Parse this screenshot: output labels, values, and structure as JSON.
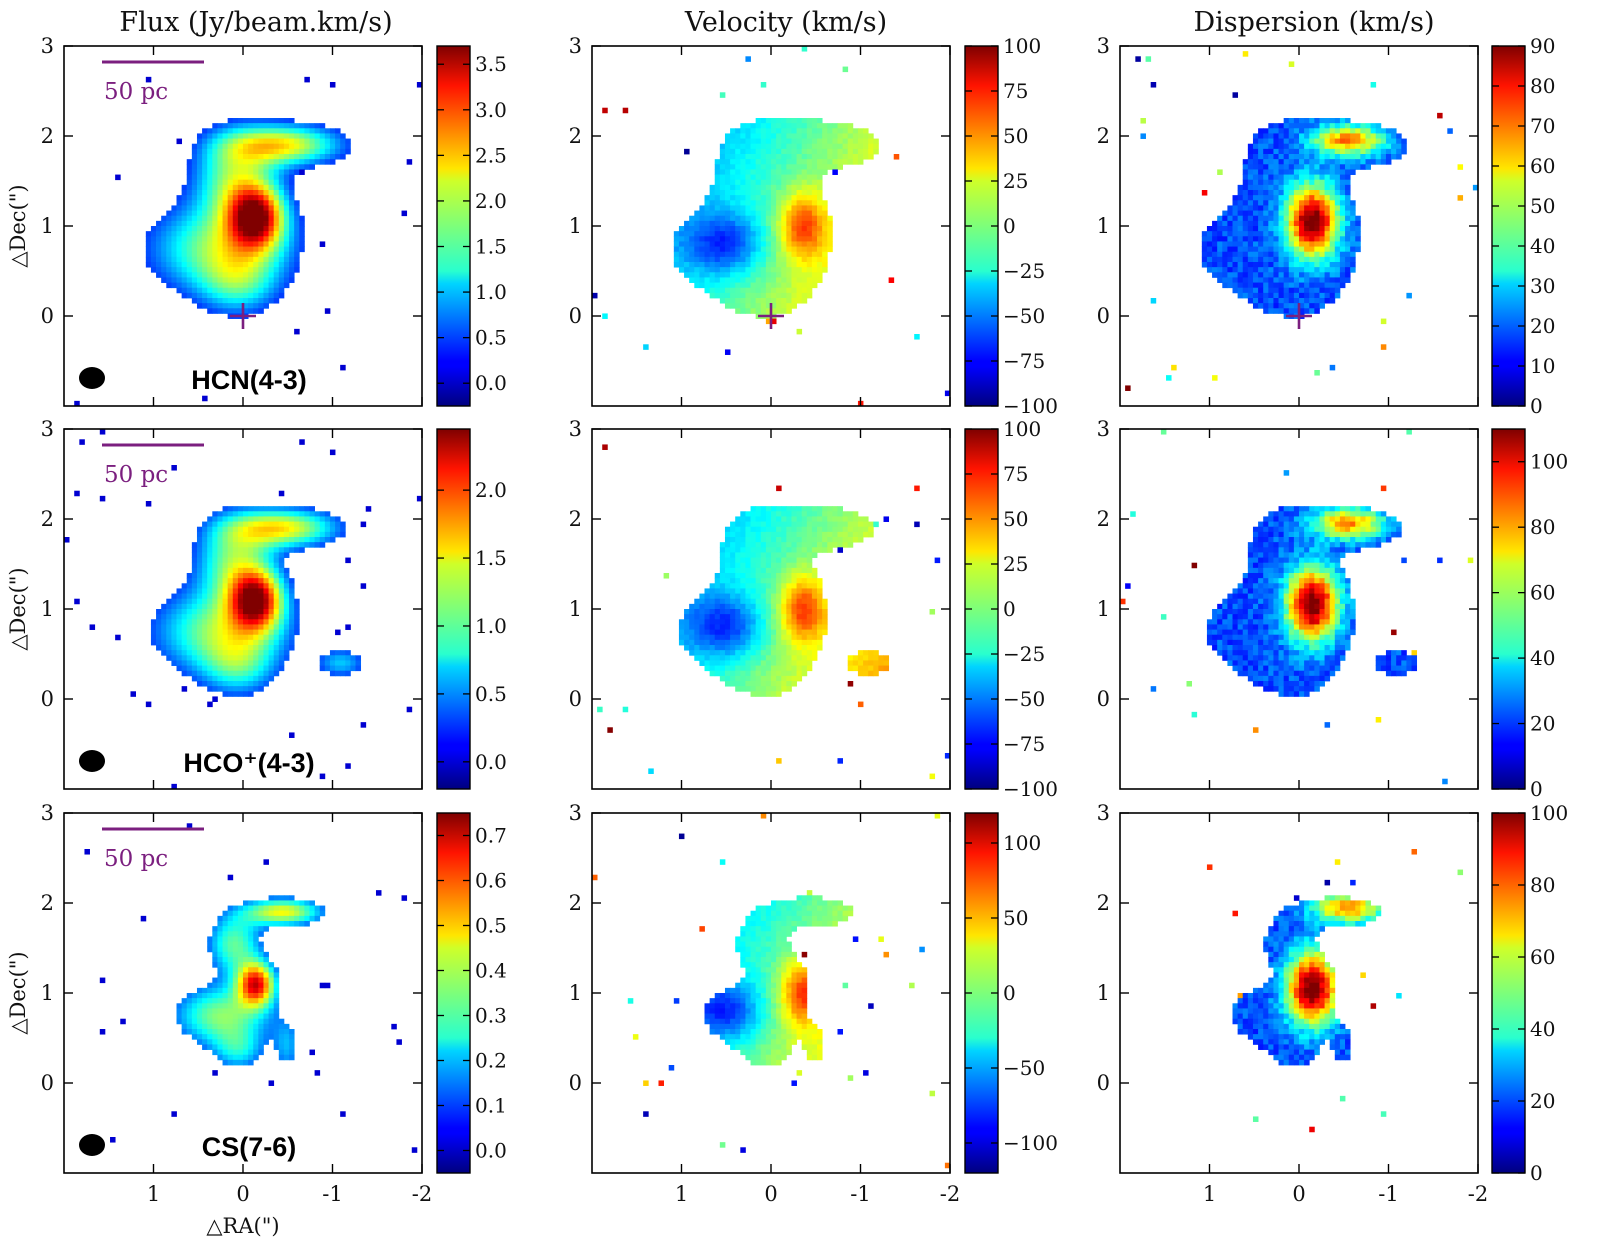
{
  "column_titles": {
    "flux": "Flux (Jy/beam.km/s)",
    "velocity": "Velocity (km/s)",
    "dispersion": "Dispersion (km/s)"
  },
  "axis_labels": {
    "ylabel": "△Dec(\")",
    "xlabel": "△RA(\")"
  },
  "scale_bar_label": "50 pc",
  "colors": {
    "scale_bar": "#7b1f7f",
    "nucleus_marker": "#7b1f7f",
    "beam": "#000000"
  },
  "chart_data": [
    {
      "type": "heatmap",
      "row": "HCN(4-3)",
      "quantity": "flux",
      "title": "Flux (Jy/beam.km/s)",
      "molecule_label": "HCN(4-3)",
      "show_beam": true,
      "show_scale_bar": true,
      "show_cross": true,
      "xlim": [
        2,
        -2
      ],
      "ylim": [
        -1,
        3
      ],
      "xticks": [
        1,
        0,
        -1,
        -2
      ],
      "yticks": [
        0,
        1,
        2,
        3
      ],
      "colorbar": {
        "range": [
          -0.25,
          3.7
        ],
        "ticks": [
          0.0,
          0.5,
          1.0,
          1.5,
          2.0,
          2.5,
          3.0,
          3.5
        ],
        "tick_labels": [
          "0.0",
          "0.5",
          "1.0",
          "1.5",
          "2.0",
          "2.5",
          "3.0",
          "3.5"
        ]
      }
    },
    {
      "type": "heatmap",
      "row": "HCN(4-3)",
      "quantity": "velocity",
      "title": "Velocity (km/s)",
      "show_cross": true,
      "xlim": [
        2,
        -2
      ],
      "ylim": [
        -1,
        3
      ],
      "xticks": [
        1,
        0,
        -1,
        -2
      ],
      "yticks": [
        0,
        1,
        2,
        3
      ],
      "colorbar": {
        "range": [
          -100,
          100
        ],
        "ticks": [
          -100,
          -75,
          -50,
          -25,
          0,
          25,
          50,
          75,
          100
        ],
        "tick_labels": [
          "−100",
          "−75",
          "−50",
          "−25",
          "0",
          "25",
          "50",
          "75",
          "100"
        ]
      }
    },
    {
      "type": "heatmap",
      "row": "HCN(4-3)",
      "quantity": "dispersion",
      "title": "Dispersion (km/s)",
      "show_cross": true,
      "xlim": [
        2,
        -2
      ],
      "ylim": [
        -1,
        3
      ],
      "xticks": [
        1,
        0,
        -1,
        -2
      ],
      "yticks": [
        0,
        1,
        2,
        3
      ],
      "colorbar": {
        "range": [
          0,
          90
        ],
        "ticks": [
          0,
          10,
          20,
          30,
          40,
          50,
          60,
          70,
          80,
          90
        ],
        "tick_labels": [
          "0",
          "10",
          "20",
          "30",
          "40",
          "50",
          "60",
          "70",
          "80",
          "90"
        ]
      }
    },
    {
      "type": "heatmap",
      "row": "HCO+(4-3)",
      "quantity": "flux",
      "molecule_label": "HCO⁺(4-3)",
      "show_beam": true,
      "show_scale_bar": true,
      "xlim": [
        2,
        -2
      ],
      "ylim": [
        -1,
        3
      ],
      "xticks": [
        1,
        0,
        -1,
        -2
      ],
      "yticks": [
        0,
        1,
        2,
        3
      ],
      "colorbar": {
        "range": [
          -0.2,
          2.45
        ],
        "ticks": [
          0.0,
          0.5,
          1.0,
          1.5,
          2.0
        ],
        "tick_labels": [
          "0.0",
          "0.5",
          "1.0",
          "1.5",
          "2.0"
        ]
      }
    },
    {
      "type": "heatmap",
      "row": "HCO+(4-3)",
      "quantity": "velocity",
      "xlim": [
        2,
        -2
      ],
      "ylim": [
        -1,
        3
      ],
      "xticks": [
        1,
        0,
        -1,
        -2
      ],
      "yticks": [
        0,
        1,
        2,
        3
      ],
      "colorbar": {
        "range": [
          -100,
          100
        ],
        "ticks": [
          -100,
          -75,
          -50,
          -25,
          0,
          25,
          50,
          75,
          100
        ],
        "tick_labels": [
          "−100",
          "−75",
          "−50",
          "−25",
          "0",
          "25",
          "50",
          "75",
          "100"
        ]
      }
    },
    {
      "type": "heatmap",
      "row": "HCO+(4-3)",
      "quantity": "dispersion",
      "xlim": [
        2,
        -2
      ],
      "ylim": [
        -1,
        3
      ],
      "xticks": [
        1,
        0,
        -1,
        -2
      ],
      "yticks": [
        0,
        1,
        2,
        3
      ],
      "colorbar": {
        "range": [
          0,
          110
        ],
        "ticks": [
          0,
          20,
          40,
          60,
          80,
          100
        ],
        "tick_labels": [
          "0",
          "20",
          "40",
          "60",
          "80",
          "100"
        ]
      }
    },
    {
      "type": "heatmap",
      "row": "CS(7-6)",
      "quantity": "flux",
      "molecule_label": "CS(7-6)",
      "show_beam": true,
      "show_scale_bar": true,
      "xlim": [
        2,
        -2
      ],
      "ylim": [
        -1,
        3
      ],
      "xticks": [
        1,
        0,
        -1,
        -2
      ],
      "yticks": [
        0,
        1,
        2,
        3
      ],
      "xtick_labels_visible": true,
      "colorbar": {
        "range": [
          -0.05,
          0.75
        ],
        "ticks": [
          0.0,
          0.1,
          0.2,
          0.3,
          0.4,
          0.5,
          0.6,
          0.7
        ],
        "tick_labels": [
          "0.0",
          "0.1",
          "0.2",
          "0.3",
          "0.4",
          "0.5",
          "0.6",
          "0.7"
        ]
      }
    },
    {
      "type": "heatmap",
      "row": "CS(7-6)",
      "quantity": "velocity",
      "xlim": [
        2,
        -2
      ],
      "ylim": [
        -1,
        3
      ],
      "xticks": [
        1,
        0,
        -1,
        -2
      ],
      "yticks": [
        0,
        1,
        2,
        3
      ],
      "xtick_labels_visible": true,
      "colorbar": {
        "range": [
          -120,
          120
        ],
        "ticks": [
          -100,
          -50,
          0,
          50,
          100
        ],
        "tick_labels": [
          "−100",
          "−50",
          "0",
          "50",
          "100"
        ]
      }
    },
    {
      "type": "heatmap",
      "row": "CS(7-6)",
      "quantity": "dispersion",
      "xlim": [
        2,
        -2
      ],
      "ylim": [
        -1,
        3
      ],
      "xticks": [
        1,
        0,
        -1,
        -2
      ],
      "yticks": [
        0,
        1,
        2,
        3
      ],
      "xtick_labels_visible": true,
      "colorbar": {
        "range": [
          0,
          100
        ],
        "ticks": [
          0,
          20,
          40,
          60,
          80,
          100
        ],
        "tick_labels": [
          "0",
          "20",
          "40",
          "60",
          "80",
          "100"
        ]
      }
    }
  ]
}
